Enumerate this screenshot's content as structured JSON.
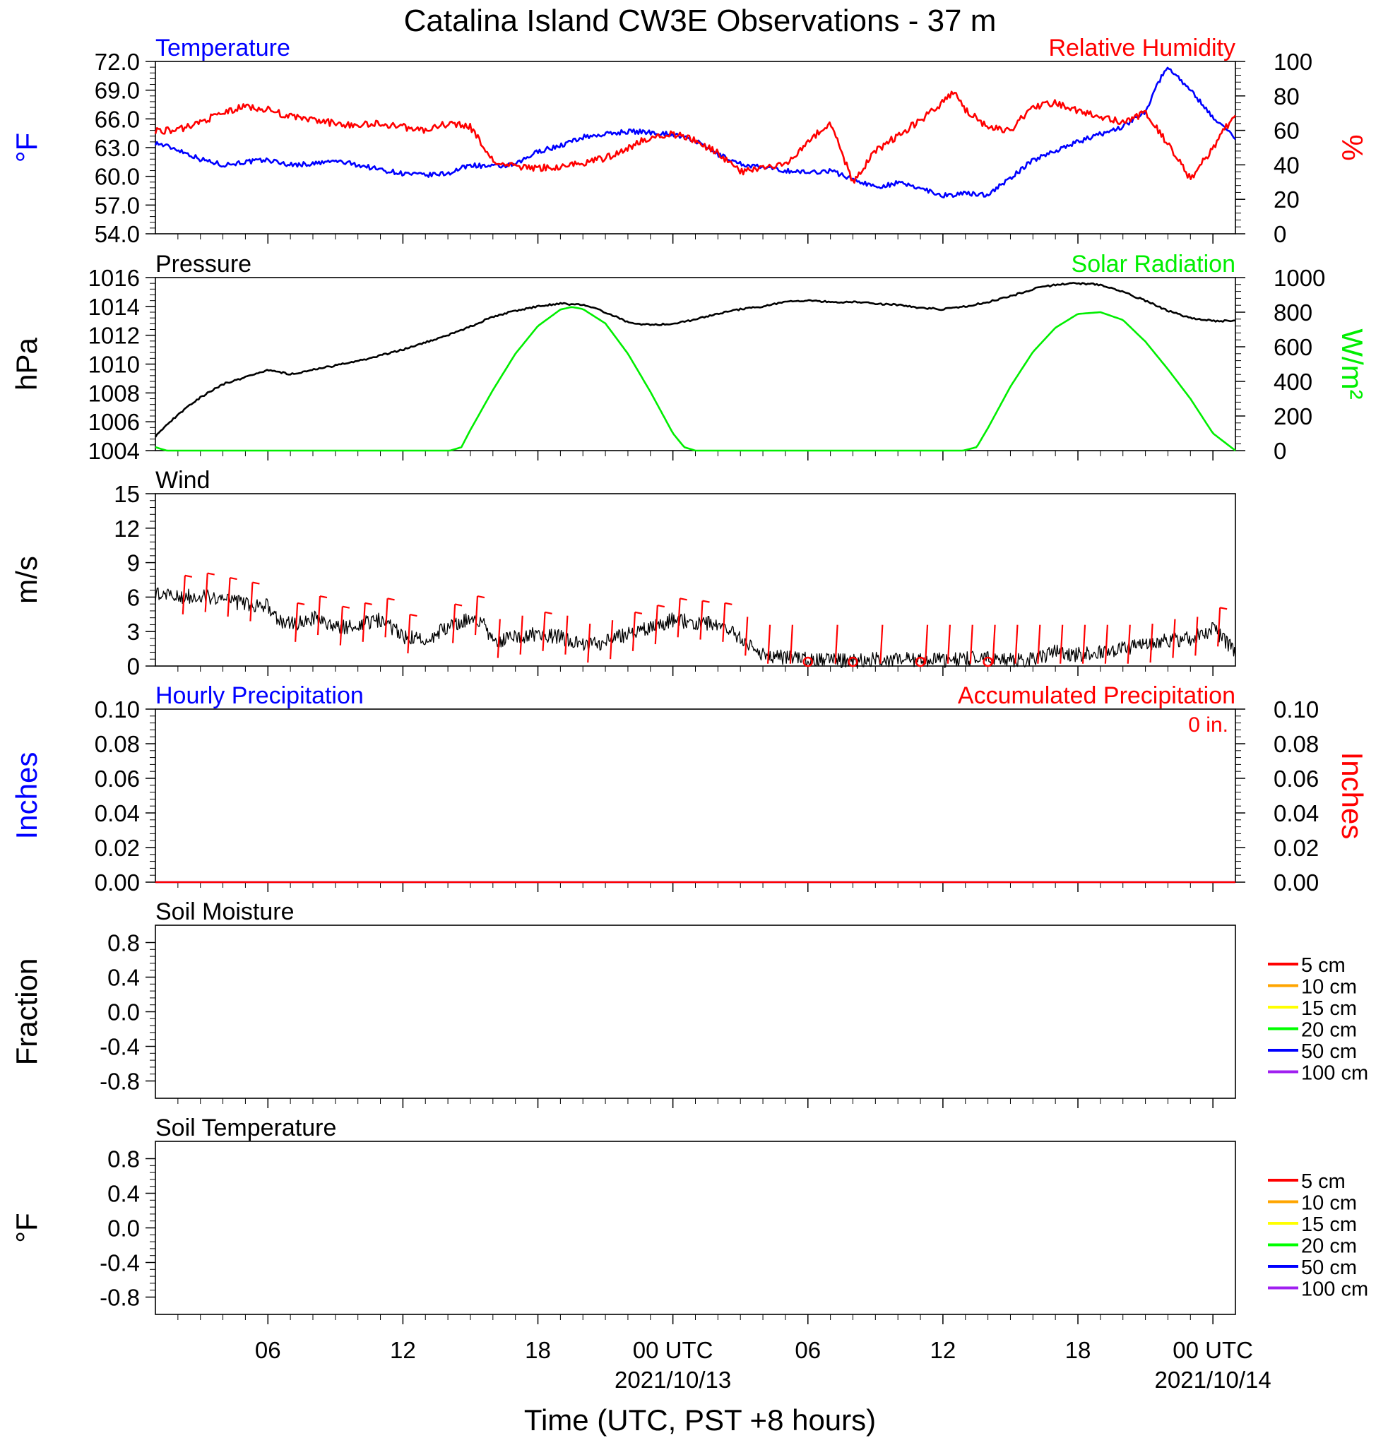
{
  "title": "Catalina Island CW3E Observations - 37 m",
  "xlabel": "Time (UTC, PST +8 hours)",
  "x_ticks": [
    {
      "hour": 5,
      "label": "06",
      "date": ""
    },
    {
      "hour": 11,
      "label": "12",
      "date": ""
    },
    {
      "hour": 17,
      "label": "18",
      "date": ""
    },
    {
      "hour": 23,
      "label": "00 UTC",
      "date": "2021/10/13"
    },
    {
      "hour": 29,
      "label": "06",
      "date": ""
    },
    {
      "hour": 35,
      "label": "12",
      "date": ""
    },
    {
      "hour": 41,
      "label": "18",
      "date": ""
    },
    {
      "hour": 47,
      "label": "00 UTC",
      "date": "2021/10/14"
    }
  ],
  "colors": {
    "blue": "#0000ff",
    "red": "#ff0000",
    "green": "#00ee00",
    "black": "#000000"
  },
  "chart_data": [
    {
      "type": "line",
      "panel": "temperature_humidity",
      "title_left": "Temperature",
      "title_right": "Relative Humidity",
      "ylabel_left": "°F",
      "ylabel_right": "%",
      "ylim_left": [
        54,
        72
      ],
      "ylim_right": [
        0,
        100
      ],
      "yticks_left": [
        "72.0",
        "69.0",
        "66.0",
        "63.0",
        "60.0",
        "57.0",
        "54.0"
      ],
      "yticks_right": [
        "100",
        "80",
        "60",
        "40",
        "20",
        "0"
      ],
      "series": [
        {
          "name": "Temperature",
          "axis": "left",
          "color": "#0000ff",
          "x": [
            0,
            1,
            2,
            3,
            4,
            5,
            6,
            7,
            8,
            9,
            10,
            11,
            12,
            13,
            14,
            15,
            16,
            17,
            18,
            19,
            20,
            21,
            22,
            23,
            24,
            25,
            26,
            27,
            28,
            29,
            30,
            31,
            32,
            33,
            34,
            35,
            36,
            37,
            38,
            39,
            40,
            41,
            42,
            43,
            44,
            44.5,
            45,
            46,
            47,
            48
          ],
          "y": [
            63.5,
            62.8,
            61.8,
            61.2,
            61.5,
            61.7,
            61.2,
            61.3,
            61.6,
            61.2,
            60.7,
            60.3,
            60.1,
            60.3,
            61.2,
            61.0,
            61.2,
            62.6,
            63.2,
            64.1,
            64.4,
            64.7,
            64.6,
            64.4,
            63.7,
            62.3,
            61.3,
            60.9,
            60.6,
            60.4,
            60.6,
            59.7,
            58.9,
            59.3,
            58.8,
            58.0,
            58.2,
            58.1,
            59.8,
            61.7,
            62.7,
            63.6,
            64.4,
            65.2,
            66.8,
            69.5,
            71.5,
            69.0,
            66.2,
            64.0
          ]
        },
        {
          "name": "Relative Humidity",
          "axis": "right",
          "color": "#ff0000",
          "x": [
            0,
            1,
            2,
            3,
            4,
            5,
            6,
            7,
            8,
            9,
            10,
            11,
            12,
            13,
            14,
            15,
            16,
            17,
            18,
            19,
            20,
            21,
            22,
            23,
            24,
            25,
            26,
            27,
            28,
            29,
            30,
            31,
            32,
            33,
            34,
            35,
            35.5,
            36,
            37,
            38,
            39,
            40,
            41,
            42,
            43,
            44,
            45,
            46,
            47,
            48
          ],
          "y": [
            60,
            60,
            65,
            70,
            74,
            72,
            68,
            66,
            64,
            63,
            64,
            62,
            60,
            64,
            62,
            42,
            39,
            38,
            39,
            41,
            44,
            50,
            56,
            58,
            54,
            47,
            36,
            38,
            40,
            54,
            64,
            30,
            48,
            57,
            66,
            76,
            82,
            72,
            62,
            60,
            74,
            76,
            71,
            68,
            65,
            70,
            52,
            32,
            50,
            70
          ]
        }
      ]
    },
    {
      "type": "line",
      "panel": "pressure_solar",
      "title_left": "Pressure",
      "title_right": "Solar Radiation",
      "ylabel_left": "hPa",
      "ylabel_right": "W/m²",
      "ylim_left": [
        1004,
        1016
      ],
      "ylim_right": [
        0,
        1000
      ],
      "yticks_left": [
        "1016",
        "1014",
        "1012",
        "1010",
        "1008",
        "1006",
        "1004"
      ],
      "yticks_right": [
        "1000",
        "800",
        "600",
        "400",
        "200",
        "0"
      ],
      "series": [
        {
          "name": "Pressure",
          "axis": "left",
          "color": "#000000",
          "x": [
            0,
            1,
            2,
            3,
            4,
            5,
            6,
            7,
            8,
            9,
            10,
            11,
            12,
            13,
            14,
            15,
            16,
            17,
            18,
            19,
            20,
            21,
            22,
            23,
            24,
            25,
            26,
            27,
            28,
            29,
            30,
            31,
            32,
            33,
            34,
            35,
            36,
            37,
            38,
            39,
            40,
            41,
            42,
            43,
            44,
            45,
            46,
            47,
            48
          ],
          "y": [
            1005.0,
            1006.5,
            1007.7,
            1008.6,
            1009.1,
            1009.6,
            1009.3,
            1009.6,
            1009.9,
            1010.2,
            1010.6,
            1011.0,
            1011.5,
            1012.0,
            1012.6,
            1013.3,
            1013.7,
            1014.0,
            1014.2,
            1014.1,
            1013.6,
            1012.9,
            1012.7,
            1012.8,
            1013.1,
            1013.5,
            1013.8,
            1014.0,
            1014.3,
            1014.4,
            1014.3,
            1014.3,
            1014.2,
            1014.1,
            1013.9,
            1013.8,
            1014.0,
            1014.3,
            1014.7,
            1015.2,
            1015.5,
            1015.6,
            1015.5,
            1015.0,
            1014.4,
            1013.7,
            1013.2,
            1013.0,
            1013.0
          ]
        },
        {
          "name": "Solar Radiation",
          "axis": "right",
          "color": "#00ee00",
          "x": [
            0,
            0.5,
            13.1,
            13.6,
            14,
            15,
            16,
            17,
            18,
            18.5,
            19,
            20,
            21,
            22,
            23,
            23.5,
            24,
            35.9,
            36.5,
            37,
            38,
            39,
            40,
            41,
            42,
            43,
            44,
            45,
            46,
            47,
            48
          ],
          "y": [
            20,
            0,
            0,
            20,
            120,
            350,
            560,
            720,
            815,
            830,
            818,
            735,
            560,
            340,
            100,
            20,
            0,
            0,
            20,
            130,
            370,
            570,
            710,
            790,
            800,
            755,
            630,
            470,
            300,
            100,
            0
          ]
        }
      ]
    },
    {
      "type": "line",
      "panel": "wind",
      "title_left": "Wind",
      "ylabel_left": "m/s",
      "ylim_left": [
        0,
        15
      ],
      "yticks_left": [
        "15",
        "12",
        "9",
        "6",
        "3",
        "0"
      ],
      "series": [
        {
          "name": "Wind",
          "axis": "left",
          "color": "#000000",
          "x": [
            0,
            1,
            2,
            3,
            4,
            5,
            5.5,
            6,
            7,
            8,
            9,
            10,
            11,
            12,
            13,
            14,
            14.5,
            15,
            16,
            17,
            18,
            19,
            20,
            21,
            22,
            23,
            24,
            25,
            26,
            27,
            28,
            29,
            30,
            31,
            32,
            33,
            34,
            35,
            36,
            37,
            38,
            39,
            40,
            41,
            42,
            43,
            44,
            45,
            46,
            47,
            48
          ],
          "y": [
            6.3,
            6.0,
            6.2,
            5.8,
            5.4,
            5.2,
            4.0,
            3.6,
            4.2,
            3.3,
            3.6,
            4.0,
            2.6,
            2.2,
            3.5,
            4.2,
            4.0,
            2.2,
            2.5,
            2.8,
            2.5,
            1.8,
            2.1,
            2.8,
            3.4,
            4.0,
            3.8,
            3.6,
            2.4,
            1.0,
            0.7,
            0.6,
            0.5,
            0.4,
            0.6,
            0.5,
            0.6,
            0.5,
            0.6,
            0.7,
            0.5,
            0.6,
            1.2,
            1.0,
            1.2,
            1.5,
            1.8,
            2.2,
            2.4,
            3.2,
            1.3
          ]
        }
      ],
      "barb_hours": [
        1,
        2,
        3,
        4,
        6,
        7,
        8,
        9,
        10,
        11,
        13,
        14,
        15,
        16,
        17,
        18,
        19,
        20,
        21,
        22,
        23,
        24,
        25,
        26,
        27,
        28,
        30,
        32,
        34,
        35,
        36,
        37,
        38,
        39,
        40,
        41,
        42,
        43,
        44,
        45,
        46,
        47
      ],
      "calm_hours": [
        29,
        31,
        34,
        37
      ]
    },
    {
      "type": "line",
      "panel": "precipitation",
      "title_left": "Hourly Precipitation",
      "title_right": "Accumulated Precipitation",
      "annotation": "0 in.",
      "ylabel_left": "Inches",
      "ylabel_right": "Inches",
      "ylim_left": [
        0,
        0.1
      ],
      "ylim_right": [
        0,
        0.1
      ],
      "yticks_left": [
        "0.10",
        "0.08",
        "0.06",
        "0.04",
        "0.02",
        "0.00"
      ],
      "yticks_right": [
        "0.10",
        "0.08",
        "0.06",
        "0.04",
        "0.02",
        "0.00"
      ],
      "series": [
        {
          "name": "Hourly Precipitation",
          "axis": "left",
          "color": "#0000ff",
          "x": [
            0,
            48
          ],
          "y": [
            0,
            0
          ]
        },
        {
          "name": "Accumulated Precipitation",
          "axis": "right",
          "color": "#ff0000",
          "x": [
            0,
            48
          ],
          "y": [
            0,
            0
          ]
        }
      ]
    },
    {
      "type": "line",
      "panel": "soil_moisture",
      "title_left": "Soil Moisture",
      "ylabel_left": "Fraction",
      "ylim_left": [
        -1,
        1
      ],
      "yticks_left": [
        "0.8",
        "0.4",
        "0.0",
        "-0.4",
        "-0.8"
      ],
      "legend": [
        {
          "name": "5 cm",
          "color": "#ff0000"
        },
        {
          "name": "10 cm",
          "color": "#ffa500"
        },
        {
          "name": "15 cm",
          "color": "#ffff00"
        },
        {
          "name": "20 cm",
          "color": "#00ff00"
        },
        {
          "name": "50 cm",
          "color": "#0000ff"
        },
        {
          "name": "100 cm",
          "color": "#a020f0"
        }
      ]
    },
    {
      "type": "line",
      "panel": "soil_temperature",
      "title_left": "Soil Temperature",
      "ylabel_left": "°F",
      "ylim_left": [
        -1,
        1
      ],
      "yticks_left": [
        "0.8",
        "0.4",
        "0.0",
        "-0.4",
        "-0.8"
      ],
      "legend": [
        {
          "name": "5 cm",
          "color": "#ff0000"
        },
        {
          "name": "10 cm",
          "color": "#ffa500"
        },
        {
          "name": "15 cm",
          "color": "#ffff00"
        },
        {
          "name": "20 cm",
          "color": "#00ff00"
        },
        {
          "name": "50 cm",
          "color": "#0000ff"
        },
        {
          "name": "100 cm",
          "color": "#a020f0"
        }
      ]
    }
  ]
}
